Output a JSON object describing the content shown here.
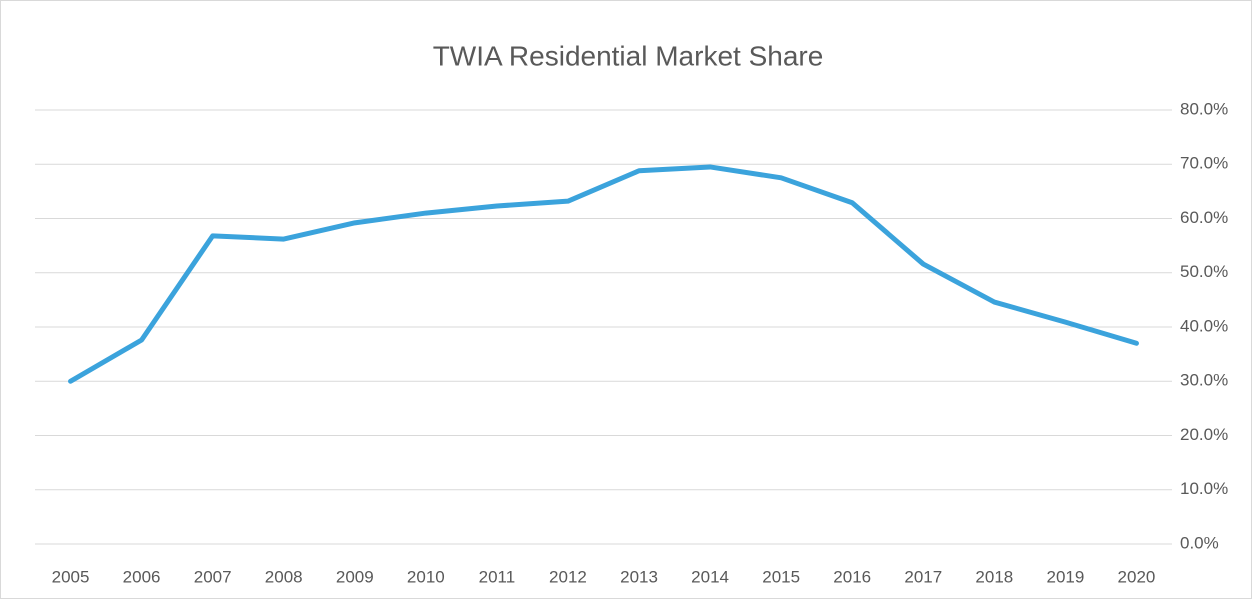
{
  "chart_data": {
    "type": "line",
    "title": "TWIA Residential Market Share",
    "categories": [
      "2005",
      "2006",
      "2007",
      "2008",
      "2009",
      "2010",
      "2011",
      "2012",
      "2013",
      "2014",
      "2015",
      "2016",
      "2017",
      "2018",
      "2019",
      "2020"
    ],
    "values": [
      30.0,
      37.6,
      56.8,
      56.2,
      59.2,
      61.0,
      62.3,
      63.2,
      68.8,
      69.5,
      67.5,
      62.9,
      51.6,
      44.6,
      40.9,
      37.0
    ],
    "color": "#3ba3dc",
    "ylim": [
      0,
      80
    ],
    "yticks": [
      {
        "value": 0,
        "label": "0.0%"
      },
      {
        "value": 10,
        "label": "10.0%"
      },
      {
        "value": 20,
        "label": "20.0%"
      },
      {
        "value": 30,
        "label": "30.0%"
      },
      {
        "value": 40,
        "label": "40.0%"
      },
      {
        "value": 50,
        "label": "50.0%"
      },
      {
        "value": 60,
        "label": "60.0%"
      },
      {
        "value": 70,
        "label": "70.0%"
      },
      {
        "value": 80,
        "label": "80.0%"
      }
    ],
    "grid": true
  }
}
